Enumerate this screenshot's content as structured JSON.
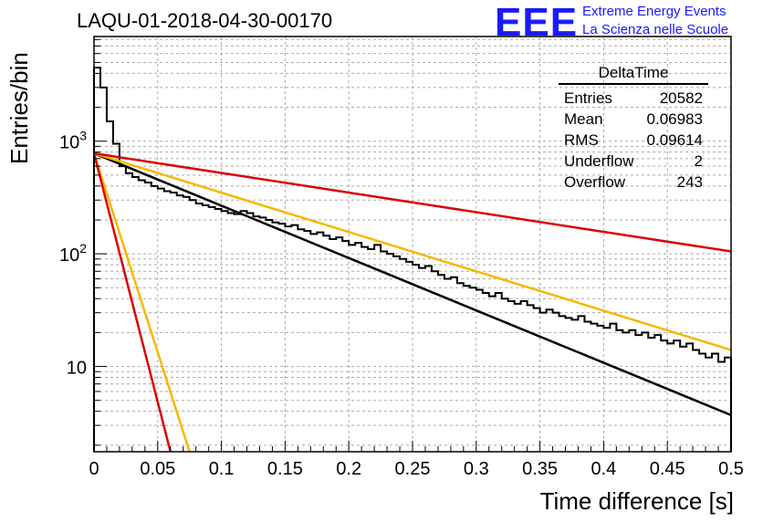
{
  "header": {
    "title": "LAQU-01-2018-04-30-00170",
    "logo_text": "EEE",
    "logo_line1": "Extreme Energy Events",
    "logo_line2": "La Scienza nelle Scuole"
  },
  "stats": {
    "name": "DeltaTime",
    "rows": [
      {
        "label": "Entries",
        "value": "20582"
      },
      {
        "label": "Mean",
        "value": "0.06983"
      },
      {
        "label": "RMS",
        "value": "0.09614"
      },
      {
        "label": "Underflow",
        "value": "2"
      },
      {
        "label": "Overflow",
        "value": "243"
      }
    ]
  },
  "colors": {
    "histogram": "#000000",
    "fit_black": "#000000",
    "fit_red": "#dd0000",
    "fit_yellow": "#f5b800",
    "grid": "#aaaaaa",
    "logo": "#1a1aff"
  },
  "chart_data": {
    "type": "histogram",
    "title": "LAQU-01-2018-04-30-00170",
    "xlabel": "Time difference [s]",
    "ylabel": "Entries/bin",
    "xlim": [
      0,
      0.5
    ],
    "ylim": [
      1.75,
      8500
    ],
    "yscale": "log",
    "grid": true,
    "x_ticks": [
      "0",
      "0.05",
      "0.1",
      "0.15",
      "0.2",
      "0.25",
      "0.3",
      "0.35",
      "0.4",
      "0.45",
      "0.5"
    ],
    "x_tick_values": [
      0,
      0.05,
      0.1,
      0.15,
      0.2,
      0.25,
      0.3,
      0.35,
      0.4,
      0.45,
      0.5
    ],
    "y_ticks": [
      {
        "value": 10,
        "base": "10",
        "exp": ""
      },
      {
        "value": 100,
        "base": "10",
        "exp": "2"
      },
      {
        "value": 1000,
        "base": "10",
        "exp": "3"
      }
    ],
    "bin_width": 0.005,
    "histogram": [
      4500,
      3000,
      1500,
      950,
      600,
      520,
      480,
      450,
      430,
      400,
      380,
      360,
      350,
      330,
      320,
      300,
      280,
      270,
      260,
      250,
      240,
      230,
      225,
      240,
      230,
      215,
      210,
      200,
      190,
      185,
      175,
      180,
      165,
      160,
      150,
      155,
      145,
      135,
      140,
      130,
      120,
      125,
      115,
      110,
      120,
      105,
      100,
      95,
      90,
      85,
      80,
      75,
      78,
      70,
      65,
      60,
      62,
      55,
      52,
      50,
      48,
      45,
      42,
      45,
      40,
      38,
      36,
      38,
      35,
      33,
      30,
      32,
      30,
      28,
      27,
      26,
      28,
      25,
      24,
      23,
      22,
      24,
      21,
      20,
      21,
      19,
      20,
      18,
      19,
      17,
      16,
      17,
      15,
      16,
      14,
      13,
      12,
      13,
      11,
      12
    ],
    "series": [
      {
        "color": "black",
        "points": [
          [
            0,
            780
          ],
          [
            0.5,
            3.7
          ]
        ]
      },
      {
        "color": "yellow",
        "points": [
          [
            0,
            780
          ],
          [
            0.5,
            14
          ]
        ]
      },
      {
        "color": "red",
        "points": [
          [
            0,
            780
          ],
          [
            0.5,
            105
          ]
        ]
      },
      {
        "color": "yellow",
        "points": [
          [
            0,
            780
          ],
          [
            0.075,
            1.75
          ]
        ]
      },
      {
        "color": "red",
        "points": [
          [
            0,
            780
          ],
          [
            0.06,
            1.75
          ]
        ]
      }
    ]
  }
}
